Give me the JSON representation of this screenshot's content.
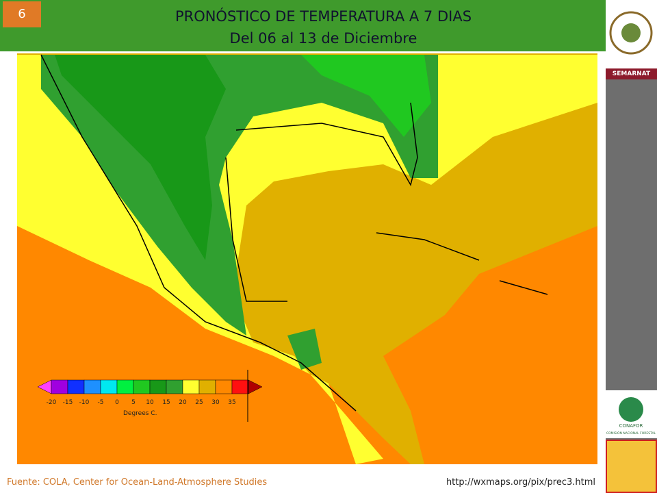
{
  "slide_number": "6",
  "header": {
    "title": "PRONÓSTICO DE TEMPERATURA A 7 DIAS",
    "subtitle": "Del 06 al 13 de Diciembre"
  },
  "sidebar": {
    "semarnat": "SEMARNAT",
    "conafor": "CONAFOR",
    "conafor_full": "COMISIÓN NACIONAL FORESTAL"
  },
  "legend": {
    "labels": [
      -20,
      -15,
      -10,
      -5,
      0,
      5,
      10,
      15,
      20,
      25,
      30,
      35
    ],
    "colors": [
      "#ff40ff",
      "#a000e0",
      "#1030ff",
      "#1e90ff",
      "#00e8f0",
      "#00f040",
      "#20c820",
      "#189818",
      "#30a030",
      "#ffff30",
      "#e0b000",
      "#ff8800",
      "#ff1010",
      "#b00000"
    ],
    "unit": "Degrees C."
  },
  "footer": {
    "source": "Fuente: COLA, Center  for Ocean-Land-Atmosphere Studies",
    "url": "http://wxmaps.org/pix/prec3.html"
  }
}
